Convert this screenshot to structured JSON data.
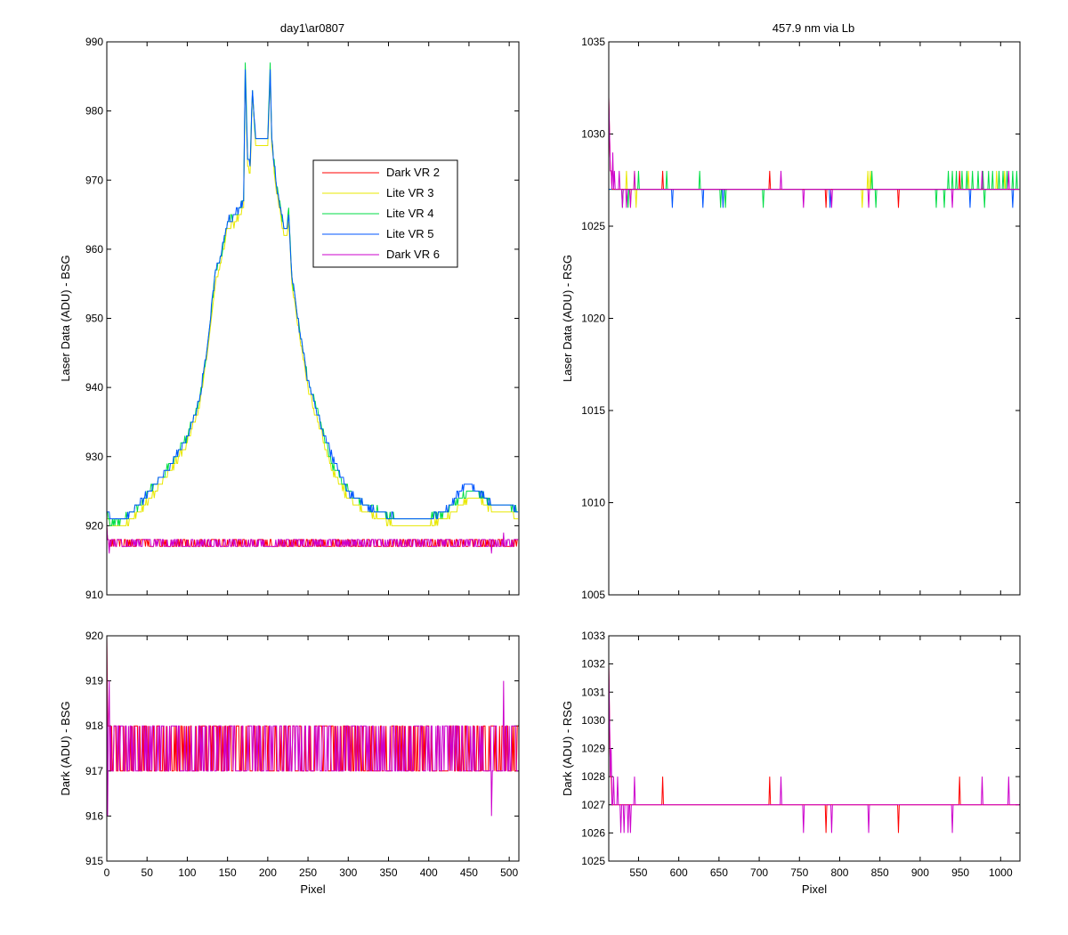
{
  "figure": {
    "left_title": "day1\\ar0807",
    "right_title": "457.9 nm via Lb"
  },
  "legend": {
    "entries": [
      {
        "label": "Dark VR 2",
        "color": "#ff0000"
      },
      {
        "label": "Lite VR 3",
        "color": "#e8e800"
      },
      {
        "label": "Lite VR 4",
        "color": "#00dd44"
      },
      {
        "label": "Lite VR 5",
        "color": "#0055ff"
      },
      {
        "label": "Dark VR 6",
        "color": "#cc00cc"
      }
    ]
  },
  "chart_data": [
    {
      "id": "bsg_laser",
      "type": "line",
      "title": "day1\\ar0807",
      "xlabel": "",
      "ylabel": "Laser Data (ADU) - BSG",
      "xlim": [
        0,
        512
      ],
      "ylim": [
        910,
        990
      ],
      "xticks": [
        0,
        50,
        100,
        150,
        200,
        250,
        300,
        350,
        400,
        450,
        500
      ],
      "yticks": [
        910,
        920,
        930,
        940,
        950,
        960,
        970,
        980,
        990
      ],
      "ytick_labels": [
        "910",
        "920",
        "930",
        "940",
        "950",
        "960",
        "970",
        "980",
        "990"
      ],
      "show_xtick_labels": false,
      "legend": "upper-right-inside",
      "series": [
        {
          "name": "Dark VR 2",
          "kind": "dark",
          "color": "#ff0000",
          "start": 920,
          "base": 917,
          "alt": 918,
          "spikes": [
            [
              2,
              918
            ]
          ]
        },
        {
          "name": "Lite VR 3",
          "kind": "lite",
          "color": "#e8e800",
          "x": [
            0,
            5,
            20,
            40,
            60,
            80,
            100,
            115,
            125,
            135,
            142,
            150,
            160,
            170,
            172,
            175,
            178,
            181,
            185,
            190,
            200,
            203,
            205,
            210,
            220,
            224,
            226,
            230,
            240,
            250,
            265,
            280,
            300,
            320,
            340,
            360,
            380,
            400,
            420,
            440,
            450,
            460,
            470,
            480,
            490,
            500,
            511
          ],
          "y": [
            921,
            920,
            920,
            922,
            925,
            928,
            932,
            937,
            945,
            955,
            958,
            963,
            964,
            966,
            985,
            972,
            971,
            982,
            975,
            975,
            975,
            985,
            975,
            969,
            962,
            962,
            964,
            955,
            947,
            940,
            934,
            928,
            924,
            922,
            921,
            920,
            920,
            920,
            921,
            923,
            924,
            924,
            923,
            922,
            922,
            922,
            921
          ]
        },
        {
          "name": "Lite VR 4",
          "kind": "lite",
          "color": "#00dd44",
          "x": [
            0,
            5,
            20,
            40,
            60,
            80,
            100,
            115,
            125,
            135,
            142,
            150,
            160,
            170,
            172,
            175,
            178,
            181,
            185,
            190,
            200,
            203,
            205,
            210,
            220,
            224,
            226,
            230,
            240,
            250,
            265,
            280,
            300,
            320,
            340,
            360,
            380,
            400,
            420,
            440,
            450,
            460,
            470,
            480,
            490,
            500,
            511
          ],
          "y": [
            922,
            920,
            921,
            923,
            926,
            929,
            933,
            938,
            946,
            957,
            959,
            964,
            965,
            967,
            987,
            973,
            972,
            983,
            976,
            976,
            976,
            987,
            976,
            970,
            963,
            963,
            966,
            956,
            948,
            941,
            935,
            929,
            925,
            923,
            922,
            921,
            921,
            921,
            922,
            924,
            925,
            925,
            924,
            923,
            923,
            923,
            922
          ]
        },
        {
          "name": "Lite VR 5",
          "kind": "lite",
          "color": "#0055ff",
          "x": [
            0,
            5,
            20,
            40,
            60,
            80,
            100,
            115,
            125,
            135,
            142,
            150,
            160,
            170,
            172,
            175,
            178,
            181,
            185,
            190,
            200,
            203,
            205,
            210,
            220,
            224,
            226,
            230,
            240,
            250,
            265,
            280,
            300,
            320,
            340,
            360,
            380,
            400,
            420,
            440,
            450,
            460,
            470,
            480,
            490,
            500,
            511
          ],
          "y": [
            922,
            921,
            921,
            923,
            926,
            929,
            933,
            938,
            946,
            957,
            959,
            964,
            965,
            967,
            986,
            973,
            972,
            983,
            976,
            976,
            976,
            986,
            976,
            970,
            963,
            963,
            965,
            956,
            948,
            941,
            935,
            930,
            925,
            923,
            922,
            921,
            921,
            921,
            922,
            925,
            926,
            925,
            924,
            923,
            923,
            923,
            922
          ]
        },
        {
          "name": "Dark VR 6",
          "kind": "dark",
          "color": "#cc00cc",
          "start": 920,
          "base": 917,
          "alt": 918,
          "spikes": [
            [
              3,
              916
            ],
            [
              478,
              916
            ],
            [
              493,
              919
            ]
          ]
        }
      ]
    },
    {
      "id": "rsg_laser",
      "type": "line",
      "title": "457.9 nm via Lb",
      "xlabel": "",
      "ylabel": "Laser Data (ADU) - RSG",
      "xlim": [
        513,
        1024
      ],
      "ylim": [
        1005,
        1035
      ],
      "xticks": [
        550,
        600,
        650,
        700,
        750,
        800,
        850,
        900,
        950,
        1000
      ],
      "yticks": [
        1005,
        1010,
        1015,
        1020,
        1025,
        1030,
        1035
      ],
      "ytick_labels": [
        "1005",
        "1010",
        "1015",
        "1020",
        "1025",
        "1030",
        "1035"
      ],
      "show_xtick_labels": false,
      "series": [
        {
          "name": "Lite VR 3",
          "color": "#e8e800",
          "base": 1027,
          "up": [
            [
              535,
              1028
            ],
            [
              545,
              1028
            ],
            [
              835,
              1028
            ],
            [
              838,
              1028
            ],
            [
              960,
              1028
            ],
            [
              995,
              1028
            ],
            [
              1005,
              1028
            ]
          ],
          "down": [
            [
              540,
              1026
            ],
            [
              547,
              1026
            ],
            [
              828,
              1026
            ]
          ]
        },
        {
          "name": "Lite VR 4",
          "color": "#00dd44",
          "base": 1027,
          "up": [
            [
              550,
              1028
            ],
            [
              585,
              1028
            ],
            [
              626,
              1028
            ],
            [
              840,
              1028
            ],
            [
              935,
              1028
            ],
            [
              940,
              1028
            ],
            [
              945,
              1028
            ],
            [
              952,
              1028
            ],
            [
              958,
              1028
            ],
            [
              965,
              1028
            ],
            [
              972,
              1028
            ],
            [
              978,
              1028
            ],
            [
              985,
              1028
            ],
            [
              990,
              1028
            ],
            [
              998,
              1028
            ],
            [
              1003,
              1028
            ],
            [
              1008,
              1028
            ],
            [
              1015,
              1028
            ],
            [
              1020,
              1028
            ]
          ],
          "down": [
            [
              530,
              1026
            ],
            [
              537,
              1026
            ],
            [
              652,
              1026
            ],
            [
              658,
              1026
            ],
            [
              705,
              1026
            ],
            [
              845,
              1026
            ],
            [
              920,
              1026
            ],
            [
              930,
              1026
            ],
            [
              980,
              1026
            ]
          ]
        },
        {
          "name": "Lite VR 5",
          "color": "#0055ff",
          "base": 1027,
          "up": [],
          "down": [
            [
              592,
              1026
            ],
            [
              630,
              1026
            ],
            [
              655,
              1026
            ],
            [
              788,
              1026
            ],
            [
              962,
              1026
            ],
            [
              1015,
              1026
            ]
          ]
        },
        {
          "name": "Dark VR 2",
          "color": "#ff0000",
          "base": 1027,
          "start": 1032,
          "up": [
            [
              580,
              1028
            ],
            [
              713,
              1028
            ],
            [
              949,
              1028
            ]
          ],
          "down": [
            [
              783,
              1026
            ],
            [
              873,
              1026
            ],
            [
              1024,
              1026
            ]
          ]
        },
        {
          "name": "Dark VR 6",
          "color": "#cc00cc",
          "base": 1027,
          "start": 1032,
          "up": [
            [
              518,
              1029
            ],
            [
              520,
              1028
            ],
            [
              526,
              1028
            ],
            [
              545,
              1028
            ],
            [
              727,
              1028
            ],
            [
              977,
              1028
            ],
            [
              1010,
              1028
            ]
          ],
          "down": [
            [
              530,
              1026
            ],
            [
              535,
              1026
            ],
            [
              540,
              1026
            ],
            [
              755,
              1026
            ],
            [
              790,
              1026
            ],
            [
              836,
              1026
            ],
            [
              940,
              1026
            ]
          ]
        }
      ]
    },
    {
      "id": "bsg_dark",
      "type": "line",
      "xlabel": "Pixel",
      "ylabel": "Dark (ADU) - BSG",
      "xlim": [
        0,
        512
      ],
      "ylim": [
        915,
        920
      ],
      "xticks": [
        0,
        50,
        100,
        150,
        200,
        250,
        300,
        350,
        400,
        450,
        500
      ],
      "xtick_labels": [
        "0",
        "50",
        "100",
        "150",
        "200",
        "250",
        "300",
        "350",
        "400",
        "450",
        "500"
      ],
      "yticks": [
        915,
        916,
        917,
        918,
        919,
        920
      ],
      "ytick_labels": [
        "915",
        "916",
        "917",
        "918",
        "919",
        "920"
      ],
      "show_xtick_labels": true,
      "series": [
        {
          "name": "Dark VR 2",
          "kind": "dark",
          "color": "#ff0000",
          "start": 920,
          "base": 917,
          "alt": 918,
          "spikes": [
            [
              2,
              918
            ]
          ]
        },
        {
          "name": "Dark VR 6",
          "kind": "dark",
          "color": "#cc00cc",
          "start": 920,
          "base": 917,
          "alt": 918,
          "spikes": [
            [
              1,
              916
            ],
            [
              3,
              919
            ],
            [
              478,
              916
            ],
            [
              493,
              919
            ]
          ]
        }
      ]
    },
    {
      "id": "rsg_dark",
      "type": "line",
      "xlabel": "Pixel",
      "ylabel": "Dark (ADU) - RSG",
      "xlim": [
        513,
        1024
      ],
      "ylim": [
        1025,
        1033
      ],
      "xticks": [
        550,
        600,
        650,
        700,
        750,
        800,
        850,
        900,
        950,
        1000
      ],
      "xtick_labels": [
        "550",
        "600",
        "650",
        "700",
        "750",
        "800",
        "850",
        "900",
        "950",
        "1000"
      ],
      "yticks": [
        1025,
        1026,
        1027,
        1028,
        1029,
        1030,
        1031,
        1032,
        1033
      ],
      "ytick_labels": [
        "1025",
        "1026",
        "1027",
        "1028",
        "1029",
        "1030",
        "1031",
        "1032",
        "1033"
      ],
      "show_xtick_labels": true,
      "series": [
        {
          "name": "Dark VR 2",
          "color": "#ff0000",
          "base": 1027,
          "start": 1032,
          "up": [
            [
              580,
              1028
            ],
            [
              713,
              1028
            ],
            [
              949,
              1028
            ]
          ],
          "down": [
            [
              783,
              1026
            ],
            [
              873,
              1026
            ],
            [
              1024,
              1026
            ]
          ]
        },
        {
          "name": "Dark VR 6",
          "color": "#cc00cc",
          "base": 1027,
          "start": 1032,
          "up": [
            [
              516,
              1029
            ],
            [
              519,
              1028
            ],
            [
              524,
              1028
            ],
            [
              545,
              1028
            ],
            [
              727,
              1028
            ],
            [
              977,
              1028
            ],
            [
              1010,
              1028
            ]
          ],
          "down": [
            [
              528,
              1026
            ],
            [
              532,
              1026
            ],
            [
              537,
              1026
            ],
            [
              540,
              1026
            ],
            [
              755,
              1026
            ],
            [
              790,
              1026
            ],
            [
              836,
              1026
            ],
            [
              940,
              1026
            ]
          ]
        }
      ]
    }
  ]
}
